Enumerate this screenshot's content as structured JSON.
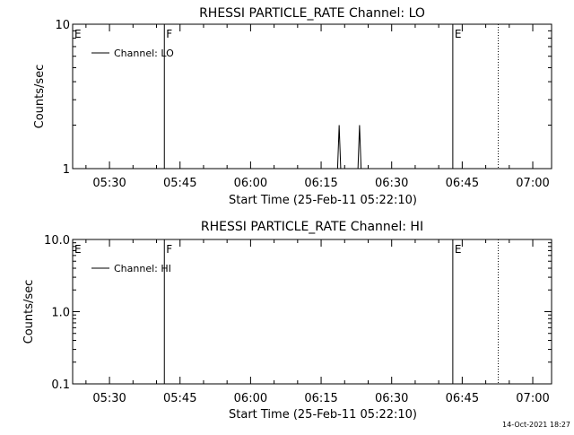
{
  "footer_timestamp": "14-Oct-2021 18:27",
  "chart_data": [
    {
      "type": "line",
      "title": "RHESSI PARTICLE_RATE Channel: LO",
      "xlabel": "Start Time (25-Feb-11 05:22:10)",
      "ylabel": "Counts/sec",
      "yscale": "log",
      "ylim": [
        1,
        10
      ],
      "ytick_labels": [
        "1",
        "10"
      ],
      "xlim": [
        "05:22:10",
        "07:04:00"
      ],
      "xtick_labels": [
        "05:30",
        "05:45",
        "06:00",
        "06:15",
        "06:30",
        "06:45",
        "07:00"
      ],
      "legend": {
        "placement": "top-left",
        "entries": [
          "Channel: LO"
        ]
      },
      "markers": [
        {
          "time": "05:22:10",
          "label": "E",
          "style": "solid"
        },
        {
          "time": "05:41:40",
          "label": "F",
          "style": "solid"
        },
        {
          "time": "06:43:00",
          "label": "E",
          "style": "solid"
        },
        {
          "time": "06:52:40",
          "label": "",
          "style": "dotted"
        }
      ],
      "series": [
        {
          "name": "Channel: LO",
          "points": [
            [
              "06:18:10",
              0.9
            ],
            [
              "06:18:10",
              1.0
            ],
            [
              "06:18:30",
              1.0
            ],
            [
              "06:18:50",
              2.0
            ],
            [
              "06:19:10",
              1.0
            ],
            [
              "06:19:30",
              1.0
            ],
            [
              "06:19:30",
              0.9
            ],
            [
              "06:22:30",
              0.9
            ],
            [
              "06:22:30",
              1.0
            ],
            [
              "06:22:50",
              1.0
            ],
            [
              "06:23:10",
              2.0
            ],
            [
              "06:23:30",
              1.0
            ],
            [
              "06:23:50",
              1.0
            ],
            [
              "06:23:50",
              0.9
            ]
          ]
        }
      ]
    },
    {
      "type": "line",
      "title": "RHESSI PARTICLE_RATE Channel: HI",
      "xlabel": "Start Time (25-Feb-11 05:22:10)",
      "ylabel": "Counts/sec",
      "yscale": "log",
      "ylim": [
        0.1,
        10
      ],
      "ytick_labels": [
        "0.1",
        "1.0",
        "10.0"
      ],
      "xlim": [
        "05:22:10",
        "07:04:00"
      ],
      "xtick_labels": [
        "05:30",
        "05:45",
        "06:00",
        "06:15",
        "06:30",
        "06:45",
        "07:00"
      ],
      "legend": {
        "placement": "top-left",
        "entries": [
          "Channel: HI"
        ]
      },
      "markers": [
        {
          "time": "05:22:10",
          "label": "E",
          "style": "solid"
        },
        {
          "time": "05:41:40",
          "label": "F",
          "style": "solid"
        },
        {
          "time": "06:43:00",
          "label": "E",
          "style": "solid"
        },
        {
          "time": "06:52:40",
          "label": "",
          "style": "dotted"
        }
      ],
      "series": [
        {
          "name": "Channel: HI",
          "points": []
        }
      ]
    }
  ]
}
